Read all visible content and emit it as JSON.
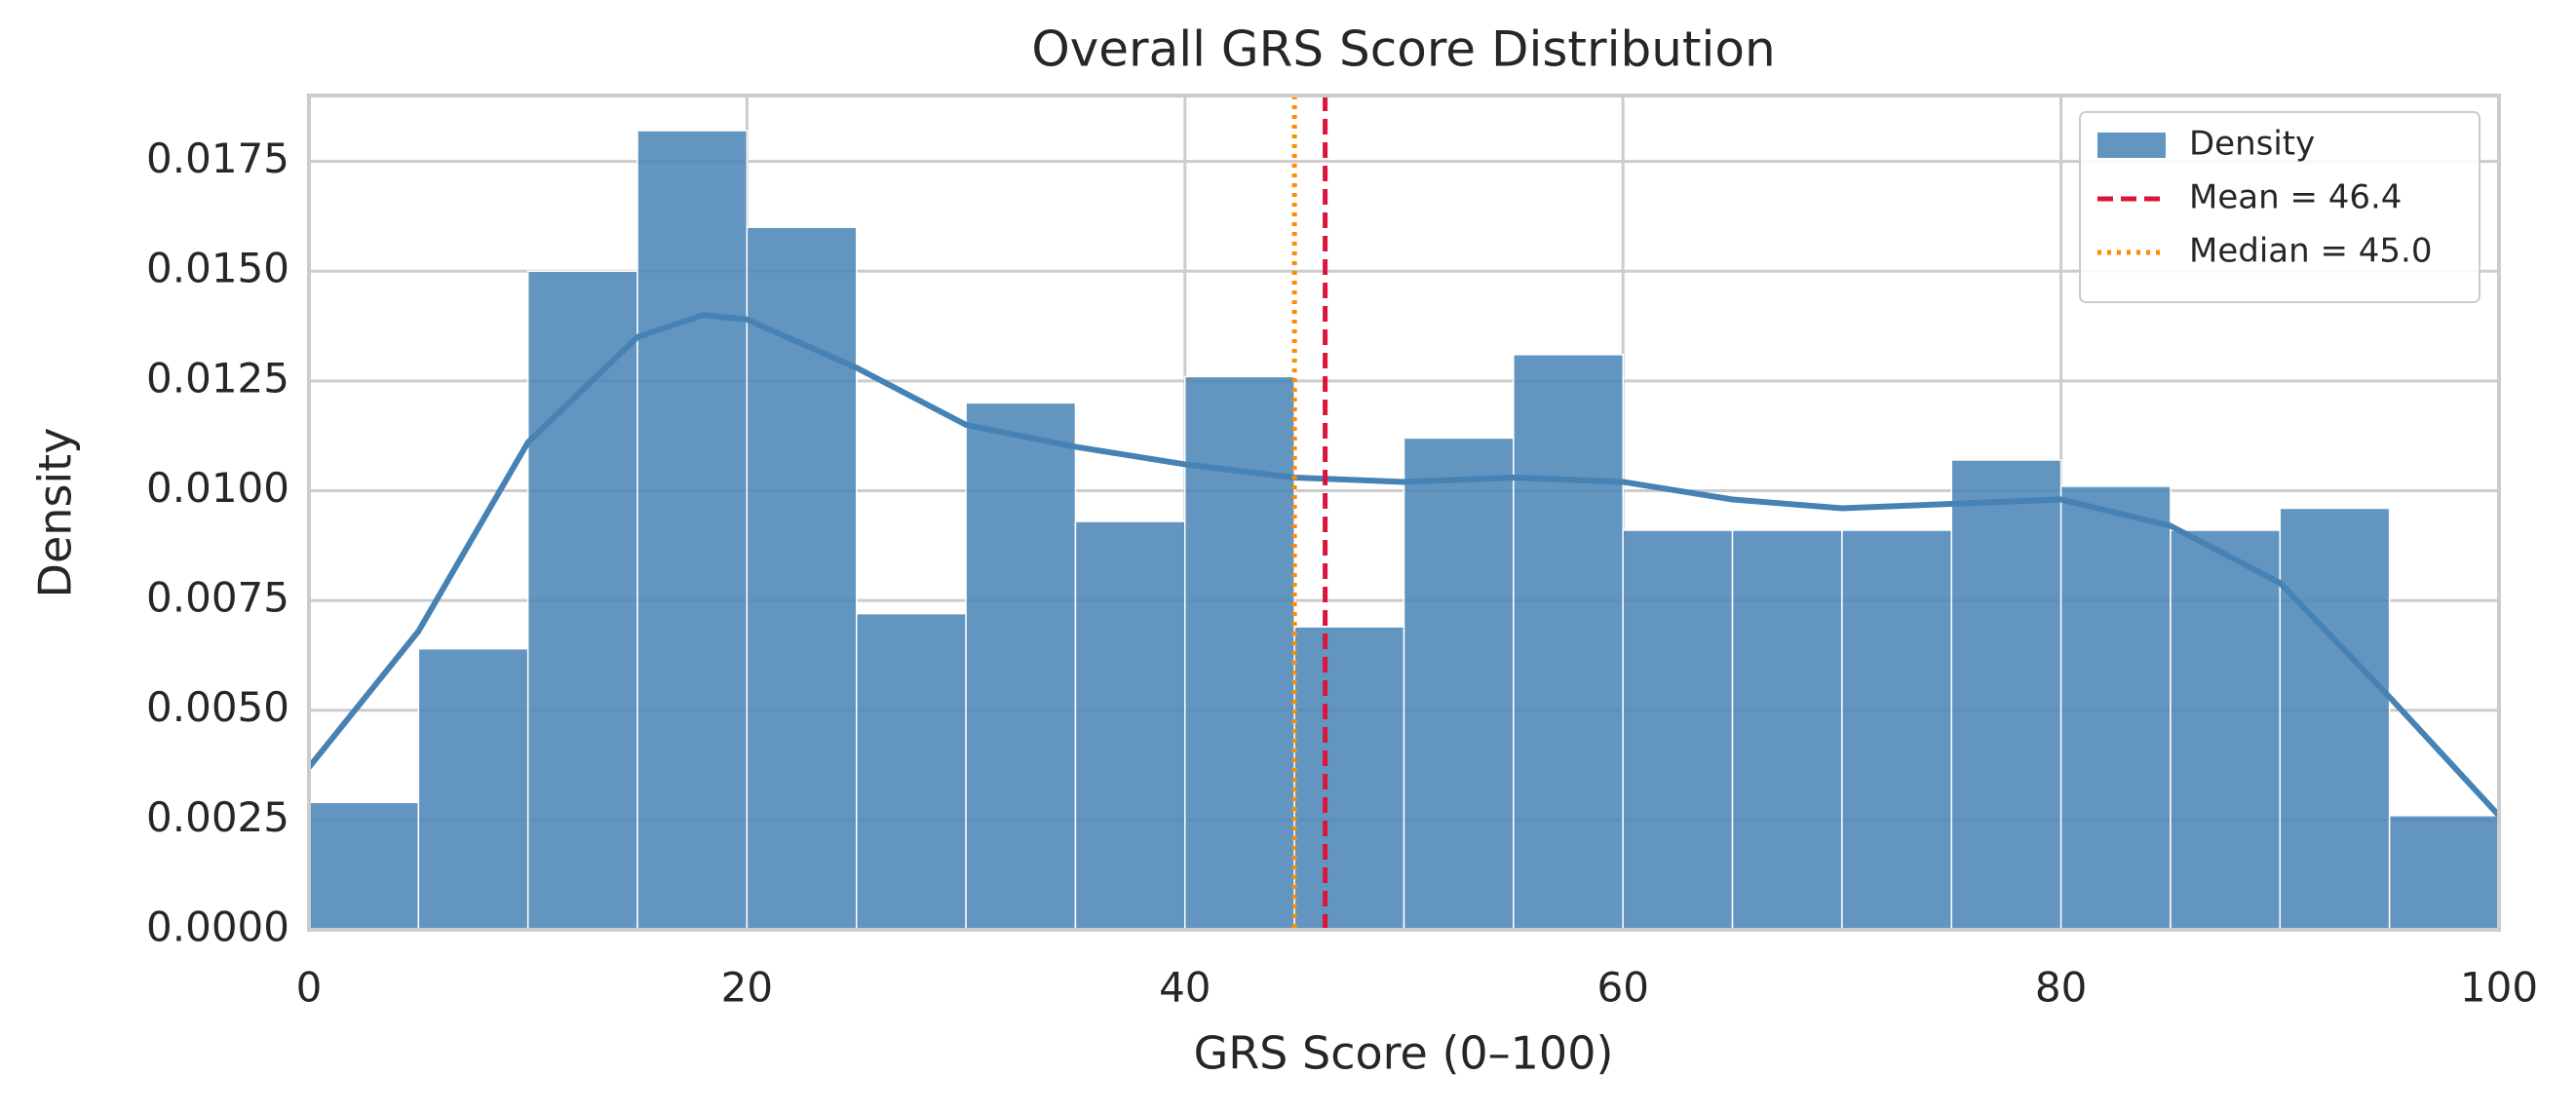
{
  "chart_data": {
    "type": "histogram",
    "title": "Overall GRS Score Distribution",
    "x_label": "GRS Score (0–100)",
    "y_label": "Density",
    "bins": [
      0,
      5,
      10,
      15,
      20,
      25,
      30,
      35,
      40,
      45,
      50,
      55,
      60,
      65,
      70,
      75,
      80,
      85,
      90,
      95,
      100
    ],
    "series": [
      {
        "name": "Density",
        "color": "#4682b4",
        "values": [
          0.0029,
          0.0064,
          0.015,
          0.0182,
          0.016,
          0.0072,
          0.012,
          0.0093,
          0.0126,
          0.0069,
          0.0112,
          0.0131,
          0.0091,
          0.0091,
          0.0091,
          0.0107,
          0.0101,
          0.0091,
          0.0096,
          0.0026
        ]
      }
    ],
    "kde": {
      "color": "#4682b4",
      "x": [
        0,
        5,
        10,
        15,
        18,
        20,
        25,
        30,
        35,
        40,
        45,
        50,
        55,
        60,
        65,
        70,
        75,
        80,
        85,
        90,
        95,
        100
      ],
      "values": [
        0.0037,
        0.0068,
        0.0111,
        0.0135,
        0.014,
        0.0139,
        0.0128,
        0.0115,
        0.011,
        0.0106,
        0.0103,
        0.0102,
        0.0103,
        0.0102,
        0.0098,
        0.0096,
        0.0097,
        0.0098,
        0.0092,
        0.0079,
        0.0053,
        0.0026
      ]
    },
    "vlines": [
      {
        "name": "Mean = 46.4",
        "value": 46.4,
        "color": "#dc143c",
        "dash": "dashed"
      },
      {
        "name": "Median = 45.0",
        "value": 45.0,
        "color": "#ff8c00",
        "dash": "dotted"
      }
    ],
    "xlim": [
      0,
      100
    ],
    "xticks": [
      0,
      20,
      40,
      60,
      80,
      100
    ],
    "ylim": [
      0,
      0.019
    ],
    "yticks": [
      {
        "value": 0,
        "label": "0.0000"
      },
      {
        "value": 0.0025,
        "label": "0.0025"
      },
      {
        "value": 0.005,
        "label": "0.0050"
      },
      {
        "value": 0.0075,
        "label": "0.0075"
      },
      {
        "value": 0.01,
        "label": "0.0100"
      },
      {
        "value": 0.0125,
        "label": "0.0125"
      },
      {
        "value": 0.015,
        "label": "0.0150"
      },
      {
        "value": 0.0175,
        "label": "0.0175"
      }
    ],
    "grid": true,
    "legend": "upper right"
  }
}
